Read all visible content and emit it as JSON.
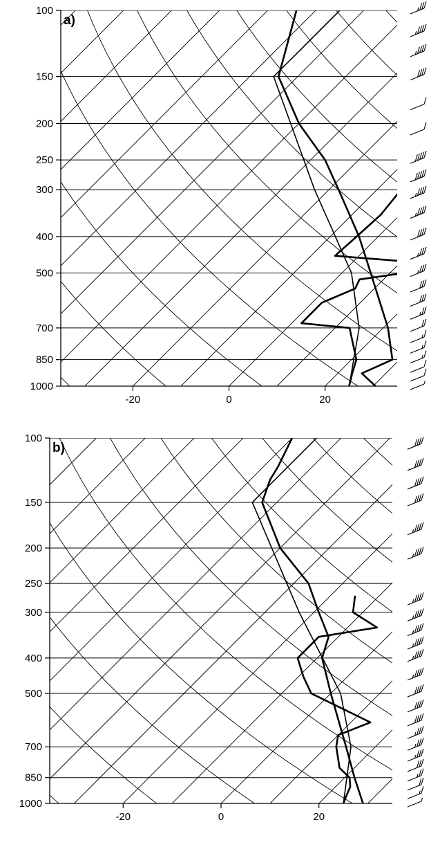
{
  "chart_data": [
    {
      "type": "skew-t",
      "panel_label": "a)",
      "pressure_ticks": [
        "100",
        "150",
        "200",
        "250",
        "300",
        "400",
        "500",
        "700",
        "850",
        "1000"
      ],
      "temperature_ticks": [
        "-20",
        "0",
        "20"
      ],
      "xlim": [
        -35,
        35
      ],
      "ylim": [
        1000,
        100
      ],
      "y_scale": "log",
      "grid": "isobars, skewed isotherms, dry adiabats",
      "series": [
        {
          "role": "temperature",
          "points": [
            [
              1000,
              30.5
            ],
            [
              925,
              25
            ],
            [
              850,
              28.5
            ],
            [
              700,
              21
            ],
            [
              500,
              6
            ],
            [
              400,
              -4
            ],
            [
              300,
              -18
            ],
            [
              250,
              -27
            ],
            [
              200,
              -40
            ],
            [
              150,
              -54
            ],
            [
              100,
              -64
            ]
          ]
        },
        {
          "role": "dewpoint",
          "points": [
            [
              1000,
              25
            ],
            [
              925,
              23
            ],
            [
              850,
              21
            ],
            [
              700,
              13
            ],
            [
              680,
              2
            ],
            [
              600,
              2
            ],
            [
              550,
              6
            ],
            [
              520,
              5
            ],
            [
              500,
              13
            ],
            [
              470,
              15
            ],
            [
              450,
              -5
            ],
            [
              400,
              -4.5
            ],
            [
              350,
              -4
            ],
            [
              300,
              -5
            ],
            [
              270,
              -7
            ]
          ]
        },
        {
          "role": "parcel",
          "points": [
            [
              1000,
              25
            ],
            [
              700,
              15
            ],
            [
              500,
              2
            ],
            [
              300,
              -23
            ],
            [
              150,
              -55
            ]
          ]
        }
      ],
      "wind_barbs": [
        {
          "p": 1000,
          "speed": 5
        },
        {
          "p": 950,
          "speed": 10
        },
        {
          "p": 900,
          "speed": 10
        },
        {
          "p": 850,
          "speed": 15
        },
        {
          "p": 800,
          "speed": 15
        },
        {
          "p": 750,
          "speed": 15
        },
        {
          "p": 700,
          "speed": 20
        },
        {
          "p": 650,
          "speed": 25
        },
        {
          "p": 600,
          "speed": 30
        },
        {
          "p": 550,
          "speed": 30
        },
        {
          "p": 500,
          "speed": 35
        },
        {
          "p": 450,
          "speed": 35
        },
        {
          "p": 400,
          "speed": 40
        },
        {
          "p": 350,
          "speed": 45
        },
        {
          "p": 310,
          "speed": 45
        },
        {
          "p": 280,
          "speed": 50
        },
        {
          "p": 250,
          "speed": 50
        },
        {
          "p": 210,
          "speed": 10
        },
        {
          "p": 180,
          "speed": 10
        },
        {
          "p": 150,
          "speed": 40
        },
        {
          "p": 130,
          "speed": 45
        },
        {
          "p": 115,
          "speed": 45
        },
        {
          "p": 100,
          "speed": 35
        }
      ]
    },
    {
      "type": "skew-t",
      "panel_label": "b)",
      "pressure_ticks": [
        "100",
        "150",
        "200",
        "250",
        "300",
        "400",
        "500",
        "700",
        "850",
        "1000"
      ],
      "temperature_ticks": [
        "-20",
        "0",
        "20"
      ],
      "xlim": [
        -35,
        35
      ],
      "ylim": [
        1000,
        100
      ],
      "y_scale": "log",
      "grid": "isobars, skewed isotherms, dry adiabats",
      "series": [
        {
          "role": "temperature",
          "points": [
            [
              1000,
              29
            ],
            [
              850,
              22
            ],
            [
              700,
              14
            ],
            [
              500,
              0
            ],
            [
              400,
              -9
            ],
            [
              350,
              -12
            ],
            [
              300,
              -19
            ],
            [
              250,
              -27
            ],
            [
              200,
              -40
            ],
            [
              150,
              -53
            ],
            [
              130,
              -56
            ],
            [
              120,
              -57
            ],
            [
              100,
              -60
            ]
          ]
        },
        {
          "role": "dewpoint",
          "points": [
            [
              1000,
              25
            ],
            [
              950,
              24
            ],
            [
              900,
              23
            ],
            [
              850,
              21
            ],
            [
              800,
              17
            ],
            [
              700,
              12
            ],
            [
              650,
              10
            ],
            [
              600,
              14
            ],
            [
              500,
              -4
            ],
            [
              450,
              -9
            ],
            [
              400,
              -14
            ],
            [
              350,
              -14
            ],
            [
              330,
              -4
            ],
            [
              300,
              -12
            ],
            [
              270,
              -15
            ]
          ]
        },
        {
          "role": "parcel",
          "points": [
            [
              1000,
              25
            ],
            [
              700,
              15
            ],
            [
              500,
              2
            ],
            [
              300,
              -23
            ],
            [
              150,
              -55
            ]
          ]
        }
      ],
      "wind_barbs": [
        {
          "p": 1000,
          "speed": 5
        },
        {
          "p": 950,
          "speed": 15
        },
        {
          "p": 900,
          "speed": 20
        },
        {
          "p": 850,
          "speed": 25
        },
        {
          "p": 800,
          "speed": 30
        },
        {
          "p": 750,
          "speed": 35
        },
        {
          "p": 700,
          "speed": 35
        },
        {
          "p": 650,
          "speed": 35
        },
        {
          "p": 600,
          "speed": 40
        },
        {
          "p": 550,
          "speed": 40
        },
        {
          "p": 500,
          "speed": 40
        },
        {
          "p": 450,
          "speed": 45
        },
        {
          "p": 400,
          "speed": 45
        },
        {
          "p": 370,
          "speed": 45
        },
        {
          "p": 340,
          "speed": 45
        },
        {
          "p": 310,
          "speed": 45
        },
        {
          "p": 280,
          "speed": 45
        },
        {
          "p": 210,
          "speed": 45
        },
        {
          "p": 180,
          "speed": 45
        },
        {
          "p": 150,
          "speed": 40
        },
        {
          "p": 135,
          "speed": 40
        },
        {
          "p": 120,
          "speed": 40
        },
        {
          "p": 105,
          "speed": 40
        }
      ]
    }
  ]
}
